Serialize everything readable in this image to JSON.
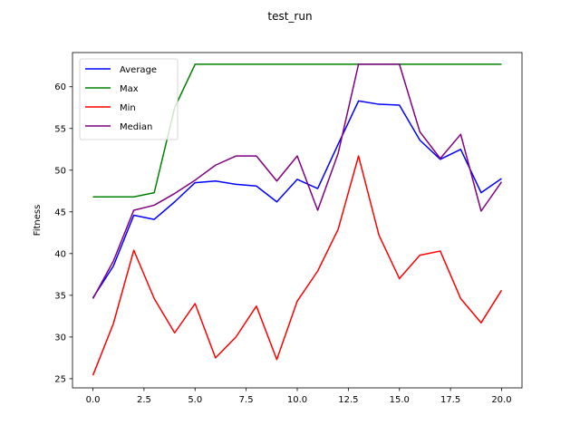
{
  "chart_data": {
    "type": "line",
    "title": "test_run",
    "xlabel": "",
    "ylabel": "Fitness",
    "xlim": [
      -1,
      21
    ],
    "ylim": [
      23.9,
      64.1
    ],
    "x": [
      0,
      1,
      2,
      3,
      4,
      5,
      6,
      7,
      8,
      9,
      10,
      11,
      12,
      13,
      14,
      15,
      16,
      17,
      18,
      19,
      20
    ],
    "xticks": [
      0,
      2.5,
      5,
      7.5,
      10,
      12.5,
      15,
      17.5,
      20
    ],
    "xtick_labels": [
      "0.0",
      "2.5",
      "5.0",
      "7.5",
      "10.0",
      "12.5",
      "15.0",
      "17.5",
      "20.0"
    ],
    "yticks": [
      25,
      30,
      35,
      40,
      45,
      50,
      55,
      60
    ],
    "ytick_labels": [
      "25",
      "30",
      "35",
      "40",
      "45",
      "50",
      "55",
      "60"
    ],
    "legend_position": "top-left",
    "grid": false,
    "series": [
      {
        "name": "Average",
        "color": "#0000ff",
        "values": [
          34.7,
          38.5,
          44.6,
          44.1,
          46.2,
          48.5,
          48.7,
          48.3,
          48.1,
          46.2,
          48.9,
          47.8,
          53.1,
          58.3,
          57.9,
          57.8,
          53.6,
          51.3,
          52.5,
          47.3,
          49.0
        ]
      },
      {
        "name": "Max",
        "color": "#008000",
        "values": [
          46.8,
          46.8,
          46.8,
          47.3,
          57.5,
          62.7,
          62.7,
          62.7,
          62.7,
          62.7,
          62.7,
          62.7,
          62.7,
          62.7,
          62.7,
          62.7,
          62.7,
          62.7,
          62.7,
          62.7,
          62.7
        ]
      },
      {
        "name": "Min",
        "color": "#ff0000",
        "values": [
          25.4,
          31.6,
          40.4,
          34.6,
          30.5,
          34.0,
          27.5,
          30.0,
          33.7,
          27.3,
          34.3,
          37.9,
          42.9,
          51.7,
          42.2,
          37.0,
          39.8,
          40.3,
          34.6,
          31.7,
          35.6
        ]
      },
      {
        "name": "Median",
        "color": "#800080",
        "values": [
          34.6,
          39.1,
          45.2,
          45.8,
          47.2,
          48.8,
          50.6,
          51.7,
          51.7,
          48.7,
          51.7,
          45.2,
          52.0,
          62.7,
          62.7,
          62.7,
          54.6,
          51.4,
          54.3,
          45.1,
          48.6
        ]
      }
    ]
  }
}
